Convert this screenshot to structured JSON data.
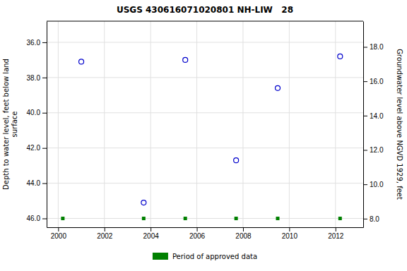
{
  "chart_data": {
    "type": "scatter",
    "title": "USGS 430616071020801 NH-LIW   28",
    "series": [
      {
        "x": [
          2001.0,
          2003.7,
          2005.5,
          2007.7,
          2009.5,
          2012.2
        ],
        "values": [
          37.1,
          45.1,
          37.0,
          42.7,
          38.6,
          36.8
        ],
        "color": "#0000cc",
        "marker": "circle"
      },
      {
        "name": "Period of approved data",
        "x": [
          2000.2,
          2003.7,
          2005.5,
          2007.7,
          2009.5,
          2012.2
        ],
        "values": [
          46.0,
          46.0,
          46.0,
          46.0,
          46.0,
          46.0
        ],
        "color": "#008000",
        "marker": "square"
      }
    ],
    "xlim": [
      1999.5,
      2013.2
    ],
    "xticks": [
      2000,
      2002,
      2004,
      2006,
      2008,
      2010,
      2012
    ],
    "ylim": [
      46.5,
      34.8
    ],
    "yticks": [
      {
        "value": 36.0,
        "label": "36.0"
      },
      {
        "value": 38.0,
        "label": "38.0"
      },
      {
        "value": 40.0,
        "label": "40.0"
      },
      {
        "value": 42.0,
        "label": "42.0"
      },
      {
        "value": 44.0,
        "label": "44.0"
      },
      {
        "value": 46.0,
        "label": "46.0"
      }
    ],
    "y2lim": [
      7.5,
      19.5
    ],
    "y2ticks": [
      {
        "value": 8.0,
        "label": "8.0"
      },
      {
        "value": 10.0,
        "label": "10.0"
      },
      {
        "value": 12.0,
        "label": "12.0"
      },
      {
        "value": 14.0,
        "label": "14.0"
      },
      {
        "value": 16.0,
        "label": "16.0"
      },
      {
        "value": 18.0,
        "label": "18.0"
      }
    ],
    "ylabel": "Depth to water level, feet below land\n surface",
    "y2label": "Groundwater level above NGVD 1929, feet",
    "grid": true,
    "legend": "bottom"
  }
}
